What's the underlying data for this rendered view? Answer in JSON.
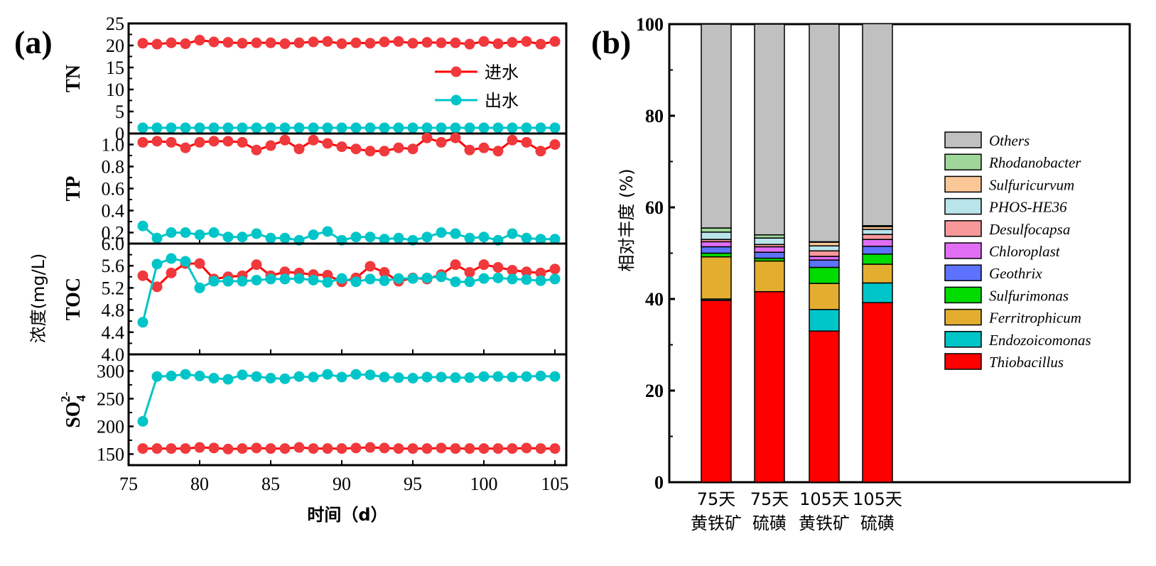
{
  "chart_data": [
    {
      "type": "line",
      "panel_label": "(a)",
      "xlabel": "时间（d）",
      "shared_ylabel": "浓度(mg/L)",
      "x_ticks": [
        75,
        80,
        85,
        90,
        95,
        100,
        105
      ],
      "xlim": [
        75,
        106
      ],
      "x": [
        76,
        77,
        78,
        79,
        80,
        81,
        82,
        83,
        84,
        85,
        86,
        87,
        88,
        89,
        90,
        91,
        92,
        93,
        94,
        95,
        96,
        97,
        98,
        99,
        100,
        101,
        102,
        103,
        104,
        105
      ],
      "legend": [
        {
          "name": "进水",
          "color": "#f0393d"
        },
        {
          "name": "出水",
          "color": "#00c5c8"
        }
      ],
      "legend_position": "upper-right of TN subplot",
      "subplots": [
        {
          "ylabel": "TN",
          "ylim": [
            0,
            25
          ],
          "y_ticks": [
            "0",
            "5",
            "10",
            "15",
            "20",
            "25"
          ],
          "series": [
            {
              "name": "进水",
              "values": [
                20.5,
                20.3,
                20.6,
                20.4,
                21.2,
                20.8,
                20.7,
                20.5,
                20.6,
                20.6,
                20.4,
                20.6,
                20.8,
                20.9,
                20.4,
                20.6,
                20.5,
                20.8,
                20.9,
                20.5,
                20.7,
                20.6,
                20.6,
                20.3,
                20.9,
                20.4,
                20.7,
                20.9,
                20.3,
                20.9
              ]
            },
            {
              "name": "出水",
              "values": [
                1.3,
                1.3,
                1.3,
                1.3,
                1.3,
                1.3,
                1.3,
                1.3,
                1.3,
                1.3,
                1.3,
                1.3,
                1.3,
                1.3,
                1.3,
                1.3,
                1.3,
                1.3,
                1.3,
                1.3,
                1.3,
                1.3,
                1.3,
                1.3,
                1.3,
                1.3,
                1.3,
                1.3,
                1.3,
                1.3
              ]
            }
          ]
        },
        {
          "ylabel": "TP",
          "ylim": [
            0.1,
            1.1
          ],
          "y_ticks": [
            "0.2",
            "0.4",
            "0.6",
            "0.8",
            "1.0"
          ],
          "series": [
            {
              "name": "进水",
              "values": [
                1.02,
                1.03,
                1.02,
                0.97,
                1.02,
                1.03,
                1.03,
                1.02,
                0.95,
                0.99,
                1.04,
                0.96,
                1.04,
                1.01,
                0.98,
                0.96,
                0.94,
                0.94,
                0.97,
                0.96,
                1.06,
                1.02,
                1.06,
                0.95,
                0.97,
                0.94,
                1.04,
                1.02,
                0.94,
                1.0
              ]
            },
            {
              "name": "出水",
              "values": [
                0.26,
                0.15,
                0.2,
                0.2,
                0.18,
                0.2,
                0.16,
                0.16,
                0.19,
                0.15,
                0.15,
                0.13,
                0.18,
                0.21,
                0.13,
                0.16,
                0.16,
                0.14,
                0.15,
                0.13,
                0.16,
                0.2,
                0.19,
                0.15,
                0.16,
                0.13,
                0.19,
                0.15,
                0.14,
                0.14
              ]
            }
          ]
        },
        {
          "ylabel": "TOC",
          "ylim": [
            4.0,
            6.0
          ],
          "y_ticks": [
            "4.0",
            "4.4",
            "4.8",
            "5.2",
            "5.6",
            "6.0"
          ],
          "series": [
            {
              "name": "进水",
              "values": [
                5.42,
                5.22,
                5.47,
                5.64,
                5.64,
                5.36,
                5.4,
                5.42,
                5.62,
                5.42,
                5.49,
                5.47,
                5.44,
                5.43,
                5.31,
                5.38,
                5.59,
                5.48,
                5.32,
                5.38,
                5.36,
                5.44,
                5.62,
                5.48,
                5.62,
                5.57,
                5.52,
                5.49,
                5.47,
                5.54
              ]
            },
            {
              "name": "出水",
              "values": [
                4.58,
                5.63,
                5.73,
                5.68,
                5.2,
                5.32,
                5.32,
                5.32,
                5.34,
                5.36,
                5.36,
                5.37,
                5.34,
                5.3,
                5.37,
                5.31,
                5.36,
                5.33,
                5.37,
                5.37,
                5.38,
                5.4,
                5.31,
                5.31,
                5.37,
                5.38,
                5.36,
                5.35,
                5.33,
                5.36
              ]
            }
          ]
        },
        {
          "ylabel": "SO42-",
          "ylabel_parts": {
            "base": "SO",
            "sub": "4",
            "sup": "2-"
          },
          "ylim": [
            130,
            330
          ],
          "y_ticks": [
            "150",
            "200",
            "250",
            "300"
          ],
          "series": [
            {
              "name": "进水",
              "values": [
                160,
                160,
                160,
                160,
                162,
                161,
                159,
                160,
                161,
                160,
                160,
                162,
                160,
                160,
                160,
                161,
                162,
                161,
                160,
                160,
                160,
                161,
                160,
                160,
                160,
                160,
                160,
                161,
                160,
                160
              ]
            },
            {
              "name": "出水",
              "values": [
                209,
                290,
                291,
                294,
                291,
                287,
                285,
                293,
                290,
                287,
                286,
                290,
                289,
                294,
                289,
                294,
                293,
                289,
                288,
                287,
                289,
                289,
                288,
                288,
                290,
                290,
                289,
                290,
                291,
                290
              ]
            }
          ]
        }
      ]
    },
    {
      "type": "bar",
      "stacked": true,
      "panel_label": "(b)",
      "ylabel": "相对丰度 (%)",
      "ylim": [
        0,
        100
      ],
      "y_ticks": [
        "0",
        "20",
        "40",
        "60",
        "80",
        "100"
      ],
      "categories": [
        [
          "75天",
          "黄铁矿"
        ],
        [
          "75天",
          "硫磺"
        ],
        [
          "105天",
          "黄铁矿"
        ],
        [
          "105天",
          "硫磺"
        ]
      ],
      "legend_position": "right",
      "series": [
        {
          "name": "Thiobacillus",
          "color": "#ff0000",
          "values": [
            39.7,
            41.6,
            33.0,
            39.2
          ]
        },
        {
          "name": "Endozoicomonas",
          "color": "#00c5c8",
          "values": [
            0.3,
            0.0,
            4.7,
            4.3
          ]
        },
        {
          "name": "Ferritrophicum",
          "color": "#e3ae30",
          "values": [
            9.2,
            6.7,
            5.7,
            4.1
          ]
        },
        {
          "name": "Sulfurimonas",
          "color": "#00dc00",
          "values": [
            0.8,
            0.6,
            3.5,
            2.2
          ]
        },
        {
          "name": "Geothrix",
          "color": "#5d72ff",
          "values": [
            1.4,
            1.3,
            1.6,
            1.7
          ]
        },
        {
          "name": "Chloroplast",
          "color": "#e06ef5",
          "values": [
            1.1,
            1.2,
            0.8,
            1.5
          ]
        },
        {
          "name": "Desulfocapsa",
          "color": "#f8989a",
          "values": [
            0.5,
            0.5,
            1.2,
            1.1
          ]
        },
        {
          "name": "PHOS-HE36",
          "color": "#b8e4ea",
          "values": [
            1.6,
            1.4,
            1.1,
            1.1
          ]
        },
        {
          "name": "Sulfuricurvum",
          "color": "#fcc797",
          "values": [
            0.0,
            0.0,
            0.8,
            0.6
          ]
        },
        {
          "name": "Rhodanobacter",
          "color": "#9fd79a",
          "values": [
            0.9,
            0.7,
            0.1,
            0.2
          ]
        },
        {
          "name": "Others",
          "color": "#c0c0c0",
          "values": [
            44.5,
            46.0,
            47.5,
            44.1
          ]
        }
      ]
    }
  ]
}
